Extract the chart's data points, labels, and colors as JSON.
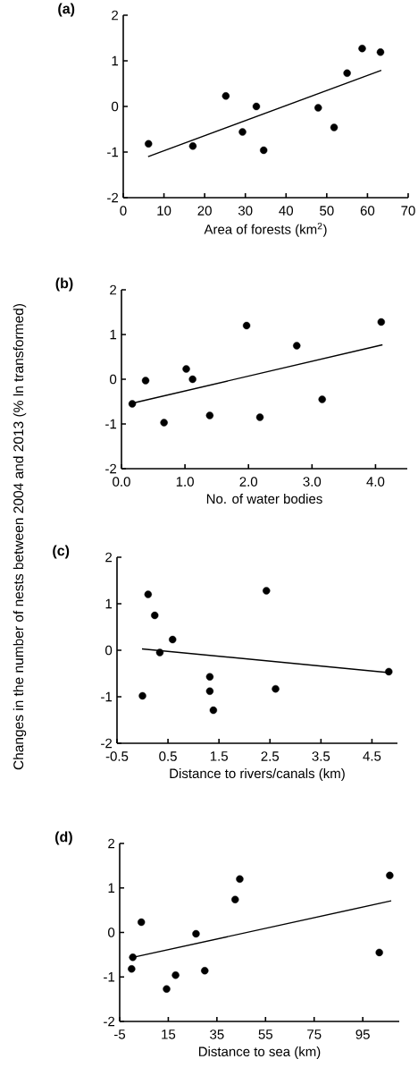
{
  "chart_data": [
    {
      "type": "scatter",
      "title": "(a)",
      "xlabel": "Area of forests (km$^{2}$)",
      "xlim": [
        0,
        70
      ],
      "xticks": [
        0,
        10,
        20,
        30,
        40,
        50,
        60,
        70
      ],
      "ylim": [
        -2,
        2
      ],
      "yticks": [
        -2,
        -1,
        0,
        1,
        2
      ],
      "series": [
        {
          "marker": "circle",
          "color": "#000000",
          "x": [
            6.2,
            17.1,
            25.2,
            29.3,
            32.7,
            34.5,
            47.9,
            51.8,
            55.0,
            58.7,
            63.2
          ],
          "values": [
            -0.82,
            -0.87,
            0.23,
            -0.56,
            0.0,
            -0.96,
            -0.03,
            -0.46,
            0.73,
            1.27,
            1.19
          ]
        },
        {
          "type": "line",
          "marker": "none",
          "color": "#000000",
          "x": [
            6.1,
            63.4
          ],
          "values": [
            -1.1,
            0.79
          ]
        }
      ]
    },
    {
      "type": "scatter",
      "title": "(b)",
      "xlabel": "No. of water bodies",
      "ylabel": "Changes in the number of nests between 2004 and 2013 (% ln transformed)",
      "xlim": [
        0,
        4.5
      ],
      "xticks": [
        {
          "value": 0,
          "label": "0.0"
        },
        {
          "value": 1,
          "label": "1.0"
        },
        {
          "value": 2,
          "label": "2.0"
        },
        {
          "value": 3,
          "label": "3.0"
        },
        {
          "value": 4,
          "label": "4.0"
        }
      ],
      "ylim": [
        -2,
        2
      ],
      "yticks": [
        -2,
        -1,
        0,
        1,
        2
      ],
      "series": [
        {
          "marker": "circle",
          "color": "#000000",
          "x": [
            0.17,
            0.38,
            0.67,
            1.02,
            1.12,
            1.39,
            1.97,
            2.18,
            2.76,
            3.16,
            4.09
          ],
          "values": [
            -0.55,
            -0.03,
            -0.97,
            0.23,
            0.0,
            -0.81,
            1.2,
            -0.85,
            0.75,
            -0.45,
            1.28
          ]
        },
        {
          "type": "line",
          "marker": "none",
          "color": "#000000",
          "x": [
            0.16,
            4.11
          ],
          "values": [
            -0.54,
            0.77
          ]
        }
      ]
    },
    {
      "type": "scatter",
      "title": "(c)",
      "xlabel": "Distance to rivers/canals (km)",
      "xlim": [
        -0.5,
        5
      ],
      "xticks": [
        -0.5,
        0.5,
        1.5,
        2.5,
        3.5,
        4.5
      ],
      "ylim": [
        -2,
        2
      ],
      "yticks": [
        -2,
        -1,
        0,
        1,
        2
      ],
      "series": [
        {
          "marker": "circle",
          "color": "#000000",
          "x": [
            0.0,
            0.11,
            0.24,
            0.34,
            0.59,
            1.32,
            1.32,
            1.39,
            2.43,
            2.61,
            4.83
          ],
          "values": [
            -0.98,
            1.2,
            0.75,
            -0.05,
            0.23,
            -0.57,
            -0.88,
            -1.29,
            1.28,
            -0.83,
            -0.46
          ]
        },
        {
          "type": "line",
          "marker": "none",
          "color": "#000000",
          "x": [
            -0.01,
            4.83
          ],
          "values": [
            0.03,
            -0.48
          ]
        }
      ]
    },
    {
      "type": "scatter",
      "title": "(d)",
      "xlabel": "Distance to sea (km)",
      "xlim": [
        -5,
        110
      ],
      "xticks": [
        -5,
        15,
        35,
        55,
        75,
        95
      ],
      "ylim": [
        -2,
        2
      ],
      "yticks": [
        -2,
        -1,
        0,
        1,
        2
      ],
      "series": [
        {
          "marker": "circle",
          "color": "#000000",
          "x": [
            -0.1,
            0.4,
            3.9,
            14.3,
            18.0,
            26.4,
            30.0,
            42.5,
            44.4,
            101.8,
            106.1
          ],
          "values": [
            -0.82,
            -0.56,
            0.23,
            -1.27,
            -0.96,
            -0.03,
            -0.86,
            0.74,
            1.2,
            -0.45,
            1.28
          ]
        },
        {
          "type": "line",
          "marker": "none",
          "color": "#000000",
          "x": [
            0.4,
            106.7
          ],
          "values": [
            -0.56,
            0.71
          ]
        }
      ]
    }
  ]
}
